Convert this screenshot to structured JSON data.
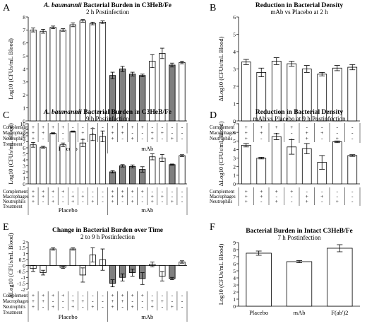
{
  "chart_data": [
    {
      "panel": "A",
      "type": "bar",
      "title_italic": "A. baumannii",
      "title_rest": " Bacterial Burden in C3HeB/Fe",
      "subtitle": "2 h Postinfection",
      "ylabel": "Log10 (CFUs/mL Blood)",
      "ylim": [
        0,
        8
      ],
      "yticks": [
        0,
        1,
        2,
        3,
        4,
        5,
        6,
        7,
        8
      ],
      "conditions": [
        {
          "label": "Complement",
          "signs": [
            "+",
            "+",
            "+",
            "+",
            "-",
            "-",
            "-",
            "-",
            "+",
            "+",
            "+",
            "+",
            "-",
            "-",
            "-",
            "-"
          ]
        },
        {
          "label": "Macrophages",
          "signs": [
            "+",
            "+",
            "-",
            "-",
            "+",
            "+",
            "-",
            "-",
            "+",
            "+",
            "-",
            "-",
            "+",
            "+",
            "-",
            "-"
          ]
        },
        {
          "label": "Neutrophils",
          "signs": [
            "+",
            "-",
            "+",
            "-",
            "+",
            "-",
            "+",
            "-",
            "+",
            "-",
            "+",
            "-",
            "+",
            "-",
            "+",
            "-"
          ]
        }
      ],
      "treatment_label": "Treatment",
      "groups": [
        "Placebo",
        "mAb"
      ],
      "values": [
        7.0,
        6.9,
        7.2,
        7.0,
        7.4,
        7.7,
        7.5,
        7.6,
        3.5,
        4.0,
        3.6,
        3.5,
        4.6,
        5.2,
        4.3,
        4.5
      ],
      "errors": [
        0.15,
        0.15,
        0.1,
        0.1,
        0.15,
        0.1,
        0.1,
        0.1,
        0.25,
        0.2,
        0.15,
        0.1,
        0.5,
        0.4,
        0.15,
        0.1
      ],
      "fills": [
        "w",
        "w",
        "w",
        "w",
        "w",
        "w",
        "w",
        "w",
        "g",
        "g",
        "g",
        "g",
        "w",
        "w",
        "g",
        "w"
      ]
    },
    {
      "panel": "B",
      "type": "bar",
      "title": "Reduction in Bacterial Density",
      "subtitle": "mAb vs Placebo at 2 h",
      "ylabel": "ΔLog10 (CFUs/mL Blood)",
      "ylim": [
        0,
        6
      ],
      "yticks": [
        0,
        1,
        2,
        3,
        4,
        5,
        6
      ],
      "conditions": [
        {
          "label": "Complement",
          "signs": [
            "+",
            "+",
            "+",
            "+",
            "-",
            "-",
            "-",
            "-"
          ]
        },
        {
          "label": "Macrophages",
          "signs": [
            "+",
            "+",
            "-",
            "-",
            "+",
            "+",
            "-",
            "-"
          ]
        },
        {
          "label": "Neutrophils",
          "signs": [
            "+",
            "-",
            "+",
            "-",
            "+",
            "-",
            "+",
            "-"
          ]
        }
      ],
      "values": [
        3.4,
        2.8,
        3.45,
        3.3,
        3.0,
        2.7,
        3.05,
        3.1
      ],
      "errors": [
        0.15,
        0.25,
        0.2,
        0.15,
        0.2,
        0.1,
        0.15,
        0.15
      ]
    },
    {
      "panel": "C",
      "type": "bar",
      "title_italic": "A. baumannii",
      "title_rest": " Bacterial Burden in C3HeB/Fe",
      "subtitle": "9 h Postinfection",
      "ylabel": "Log10 (CFUs/mL Blood)",
      "ylim": [
        0,
        10
      ],
      "yticks": [
        0,
        1,
        2,
        3,
        4,
        5,
        6,
        7,
        8,
        9,
        10
      ],
      "conditions": [
        {
          "label": "Complement",
          "signs": [
            "+",
            "+",
            "+",
            "+",
            "-",
            "-",
            "-",
            "-",
            "+",
            "+",
            "+",
            "+",
            "-",
            "-",
            "-",
            "-"
          ]
        },
        {
          "label": "Macrophages",
          "signs": [
            "+",
            "+",
            "-",
            "-",
            "+",
            "+",
            "-",
            "-",
            "+",
            "+",
            "-",
            "-",
            "+",
            "+",
            "-",
            "-"
          ]
        },
        {
          "label": "Neutrophils",
          "signs": [
            "+",
            "-",
            "+",
            "-",
            "+",
            "-",
            "+",
            "-",
            "+",
            "-",
            "+",
            "-",
            "+",
            "-",
            "+",
            "-"
          ]
        }
      ],
      "treatment_label": "Treatment",
      "groups": [
        "Placebo",
        "mAb"
      ],
      "values": [
        6.5,
        6.1,
        8.4,
        6.5,
        8.7,
        6.8,
        8.2,
        7.9,
        2.0,
        3.0,
        2.9,
        2.4,
        4.5,
        4.3,
        3.2,
        4.7
      ],
      "errors": [
        0.4,
        0.15,
        0.1,
        0.3,
        0.1,
        0.6,
        1.0,
        0.9,
        0.2,
        0.2,
        0.25,
        0.45,
        0.5,
        0.6,
        0.1,
        0.15
      ],
      "fills": [
        "w",
        "w",
        "w",
        "w",
        "w",
        "w",
        "w",
        "w",
        "g",
        "g",
        "g",
        "g",
        "w",
        "w",
        "g",
        "w"
      ]
    },
    {
      "panel": "D",
      "type": "bar",
      "title": "Reduction in Bacterial Density",
      "subtitle": "mAb vs Placebo at 9 h Postinfection",
      "ylabel": "ΔLog10 (CFUs/mL Blood)",
      "ylim": [
        0,
        7
      ],
      "yticks": [
        0,
        1,
        2,
        3,
        4,
        5,
        6,
        7
      ],
      "conditions": [
        {
          "label": "Complement",
          "signs": [
            "+",
            "+",
            "+",
            "+",
            "-",
            "-",
            "-",
            "-"
          ]
        },
        {
          "label": "Macrophages",
          "signs": [
            "+",
            "+",
            "-",
            "-",
            "+",
            "+",
            "-",
            "-"
          ]
        },
        {
          "label": "Neutrophils",
          "signs": [
            "+",
            "-",
            "+",
            "-",
            "+",
            "-",
            "+",
            "-"
          ]
        }
      ],
      "values": [
        4.5,
        3.0,
        5.5,
        4.3,
        4.1,
        2.5,
        4.9,
        3.3
      ],
      "errors": [
        0.2,
        0.1,
        0.35,
        0.85,
        0.6,
        0.8,
        0.1,
        0.1
      ]
    },
    {
      "panel": "E",
      "type": "bar",
      "title": "Change in Bacterial Burden over Time",
      "subtitle": "2 to 9 h Postinfection",
      "ylabel": "ΔLog10 (CFUs/mL Blood)",
      "ylim": [
        -2,
        2
      ],
      "yticks": [
        -2,
        -1.5,
        -1,
        -0.5,
        0,
        0.5,
        1,
        1.5,
        2
      ],
      "conditions": [
        {
          "label": "Complement",
          "signs": [
            "+",
            "+",
            "+",
            "+",
            "-",
            "-",
            "-",
            "-",
            "+",
            "+",
            "+",
            "+",
            "-",
            "-",
            "-",
            "-"
          ]
        },
        {
          "label": "Macrophages",
          "signs": [
            "+",
            "+",
            "-",
            "-",
            "+",
            "+",
            "-",
            "-",
            "+",
            "+",
            "-",
            "-",
            "+",
            "+",
            "-",
            "-"
          ]
        },
        {
          "label": "Neutrophils",
          "signs": [
            "+",
            "-",
            "+",
            "-",
            "+",
            "-",
            "+",
            "-",
            "+",
            "-",
            "+",
            "-",
            "+",
            "-",
            "+",
            "-"
          ]
        }
      ],
      "treatment_label": "Treatment",
      "groups": [
        "Placebo",
        "mAb"
      ],
      "values": [
        -0.25,
        -0.6,
        1.4,
        -0.15,
        1.4,
        -0.8,
        0.9,
        0.5,
        -1.5,
        -1.0,
        -0.6,
        -1.1,
        0.1,
        -0.9,
        -1.1,
        0.3
      ],
      "errors": [
        0.25,
        0.2,
        0.1,
        0.1,
        0.1,
        0.6,
        0.6,
        0.9,
        0.3,
        0.3,
        0.3,
        0.5,
        0.2,
        0.4,
        0.1,
        0.1
      ],
      "fills": [
        "w",
        "w",
        "w",
        "w",
        "w",
        "w",
        "w",
        "w",
        "g",
        "g",
        "g",
        "g",
        "w",
        "w",
        "g",
        "w"
      ]
    },
    {
      "panel": "F",
      "type": "bar",
      "title": "Bacterial Burden in Intact C3HeB/Fe",
      "subtitle": "7 h Postinfection",
      "ylabel": "Log10 (CFUs/mL Blood)",
      "ylim": [
        0,
        9
      ],
      "yticks": [
        0,
        1,
        2,
        3,
        4,
        5,
        6,
        7,
        8,
        9
      ],
      "categories": [
        "Placebo",
        "mAb",
        "F(ab')2"
      ],
      "values": [
        7.5,
        6.3,
        8.2
      ],
      "errors": [
        0.3,
        0.15,
        0.5
      ]
    }
  ]
}
